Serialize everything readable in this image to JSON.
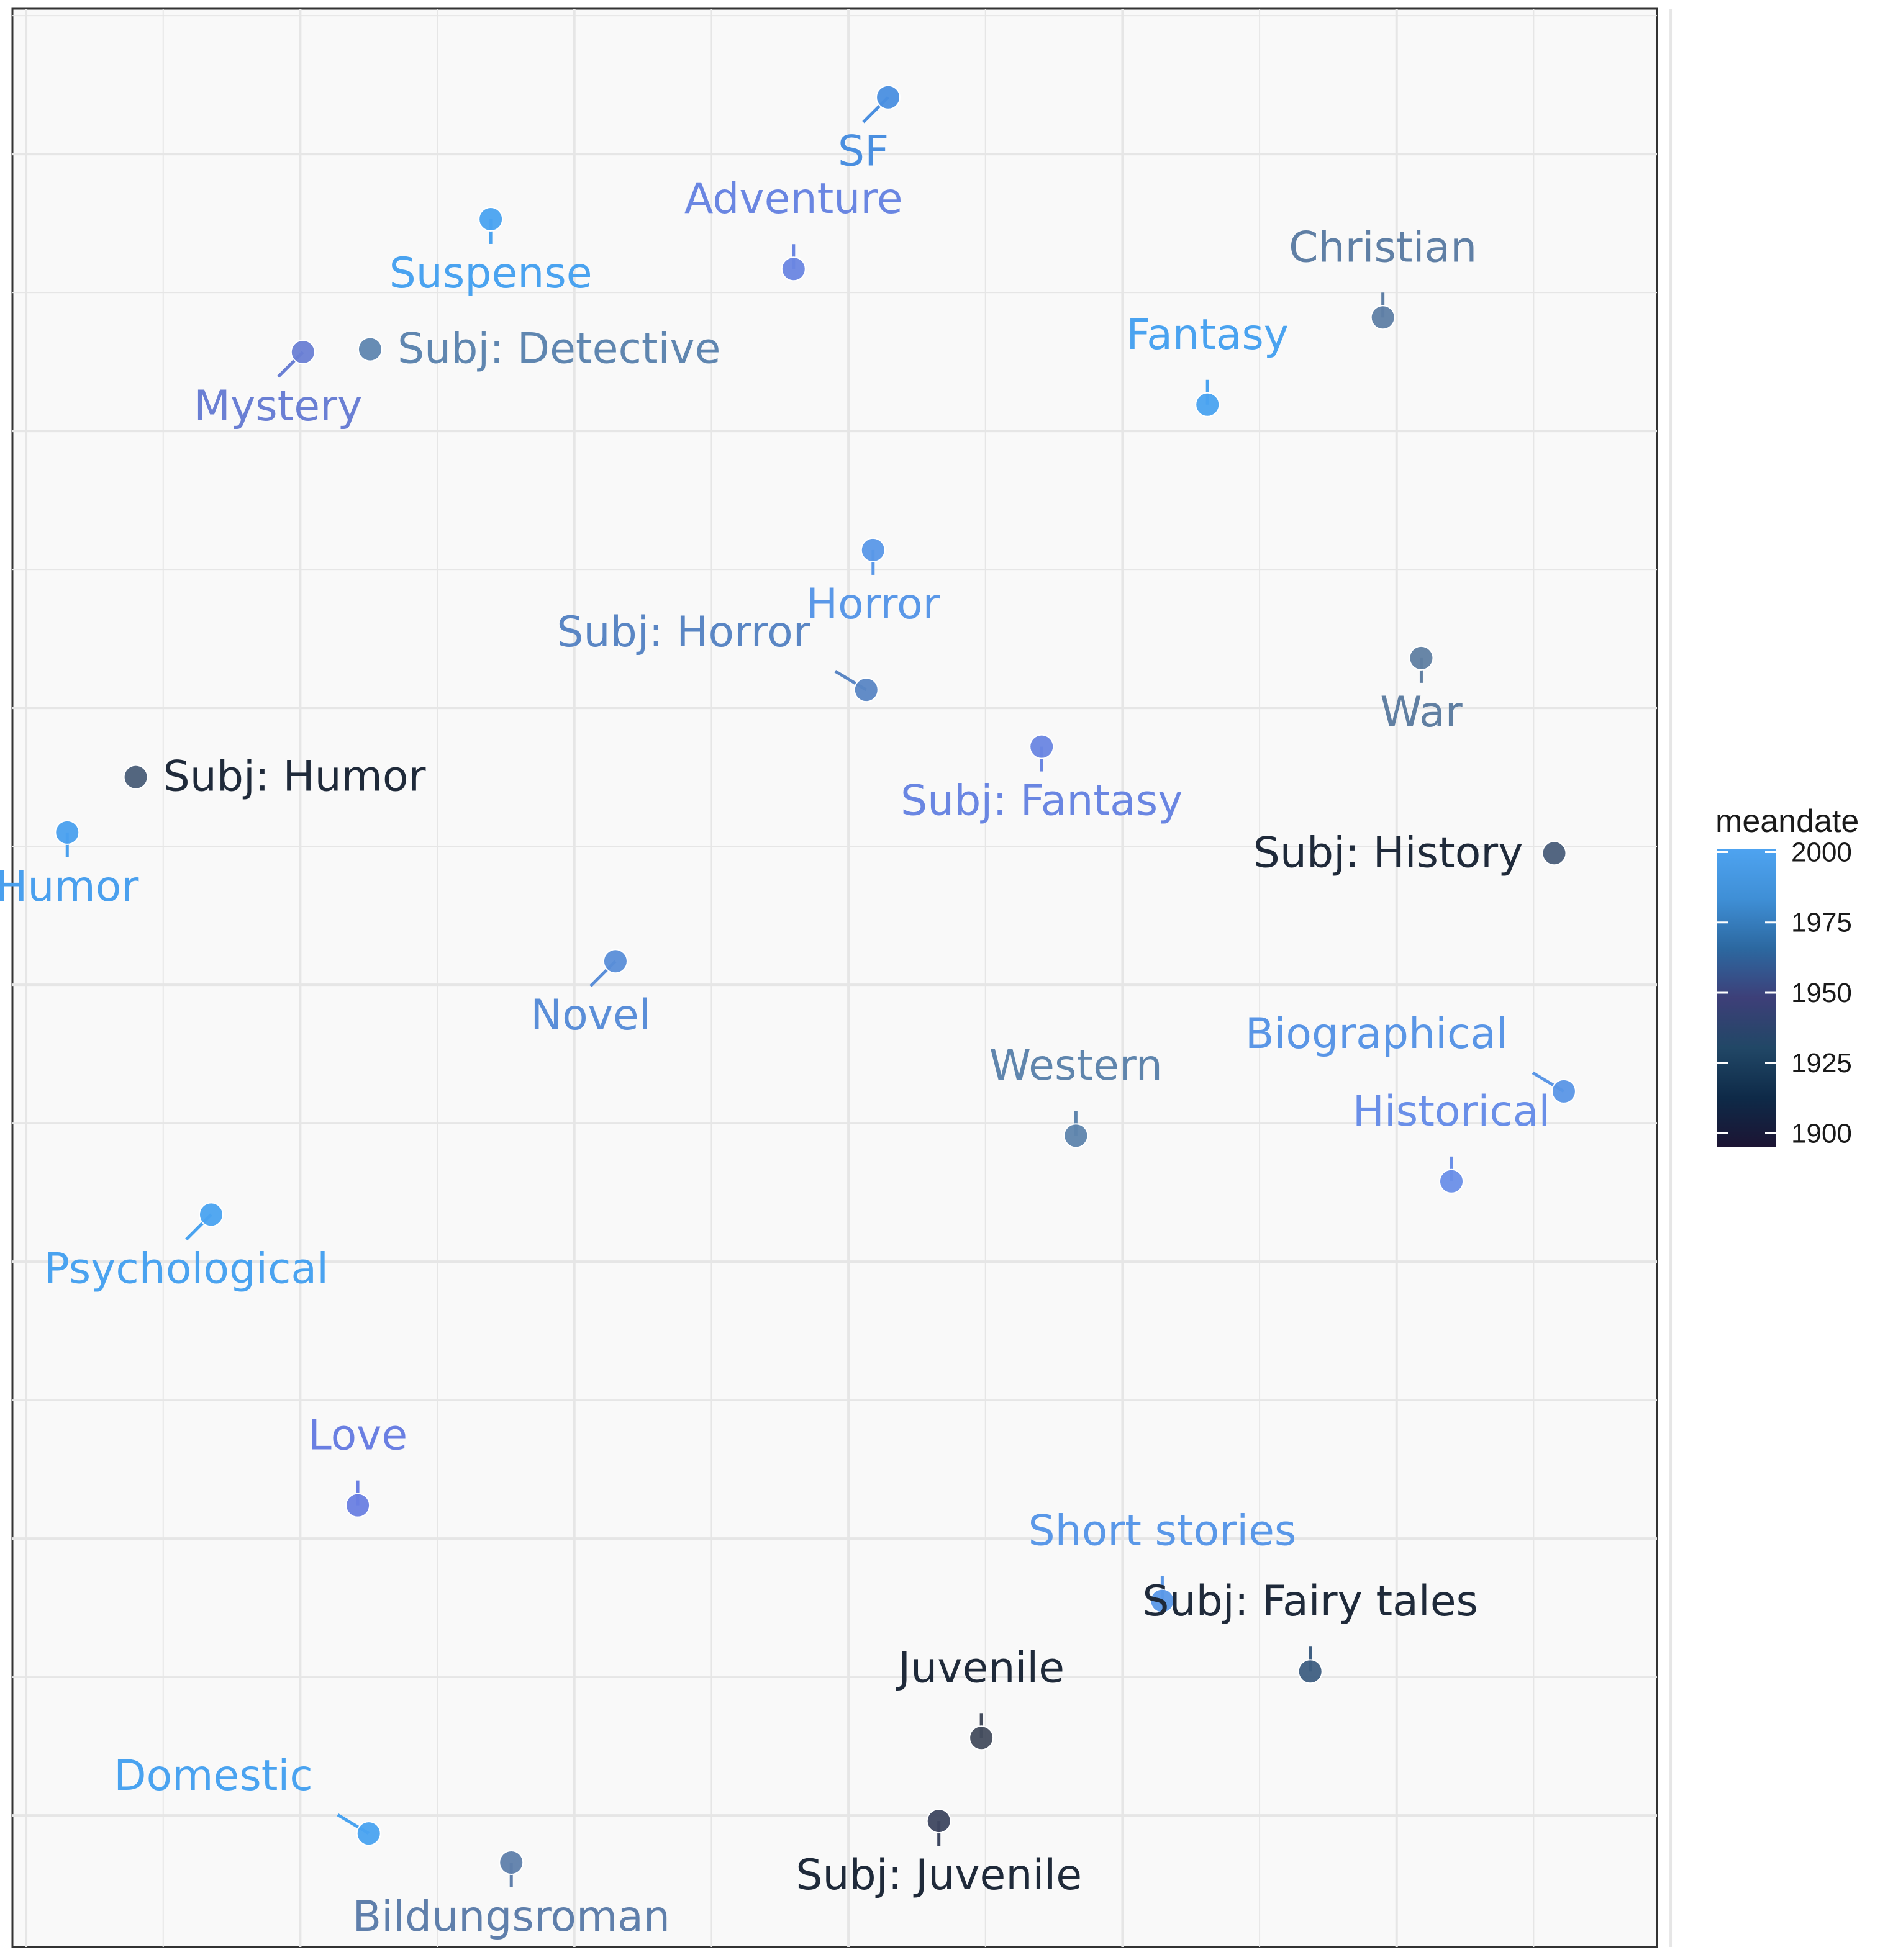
{
  "chart_data": {
    "type": "scatter",
    "title": "",
    "xlabel": "",
    "ylabel": "",
    "xlim": [
      0,
      12
    ],
    "ylim": [
      0,
      14
    ],
    "grid": true,
    "axis_ticks_shown": false,
    "legend": {
      "title": "meandate",
      "placement": "right",
      "ticks": [
        2000,
        1975,
        1950,
        1925,
        1900
      ],
      "range": [
        1895,
        2001
      ],
      "colors": [
        "#1c1433",
        "#0e2a48",
        "#214766",
        "#3d3f78",
        "#2c68a0",
        "#3f8fd6",
        "#4ea3f0"
      ]
    },
    "points": [
      {
        "label": "SF",
        "x": 6.39,
        "y": 13.36,
        "meandate": 1989,
        "color": "#4a8fe0",
        "label_pos": "bottom-left"
      },
      {
        "label": "Adventure",
        "x": 5.7,
        "y": 12.12,
        "meandate": 1965,
        "color": "#6a86e2",
        "label_pos": "top"
      },
      {
        "label": "Suspense",
        "x": 3.49,
        "y": 12.48,
        "meandate": 2000,
        "color": "#4aa3f0",
        "label_pos": "bottom"
      },
      {
        "label": "Mystery",
        "x": 2.12,
        "y": 11.52,
        "meandate": 1960,
        "color": "#6a7fd4",
        "label_pos": "bottom-left"
      },
      {
        "label": "Subj: Detective",
        "x": 2.61,
        "y": 11.54,
        "meandate": 1945,
        "color": "#5f86b0",
        "label_pos": "right"
      },
      {
        "label": "Christian",
        "x": 10.0,
        "y": 11.77,
        "meandate": 1948,
        "color": "#5f7fa5",
        "label_pos": "top"
      },
      {
        "label": "Fantasy",
        "x": 8.72,
        "y": 11.14,
        "meandate": 1998,
        "color": "#4aa3f0",
        "label_pos": "top"
      },
      {
        "label": "Horror",
        "x": 6.28,
        "y": 10.09,
        "meandate": 1985,
        "color": "#5a98e8",
        "label_pos": "bottom"
      },
      {
        "label": "Subj: Horror",
        "x": 6.23,
        "y": 9.08,
        "meandate": 1950,
        "color": "#5a86c4",
        "label_pos": "top-left"
      },
      {
        "label": "War",
        "x": 10.28,
        "y": 9.31,
        "meandate": 1942,
        "color": "#607fa2",
        "label_pos": "bottom"
      },
      {
        "label": "Subj: Fantasy",
        "x": 7.51,
        "y": 8.67,
        "meandate": 1965,
        "color": "#6a86e2",
        "label_pos": "bottom"
      },
      {
        "label": "Subj: Humor",
        "x": 0.9,
        "y": 8.45,
        "meandate": 1912,
        "color": "#4a5e78",
        "label_pos": "right"
      },
      {
        "label": "Humor",
        "x": 0.4,
        "y": 8.05,
        "meandate": 1996,
        "color": "#4aa0ee",
        "label_pos": "bottom"
      },
      {
        "label": "Subj: History",
        "x": 11.25,
        "y": 7.9,
        "meandate": 1910,
        "color": "#4a5e7a",
        "label_pos": "left"
      },
      {
        "label": "Novel",
        "x": 4.4,
        "y": 7.12,
        "meandate": 1975,
        "color": "#5a8ed8",
        "label_pos": "bottom-left"
      },
      {
        "label": "Western",
        "x": 7.76,
        "y": 5.86,
        "meandate": 1940,
        "color": "#5f85ad",
        "label_pos": "top"
      },
      {
        "label": "Biographical",
        "x": 11.32,
        "y": 6.18,
        "meandate": 1975,
        "color": "#5a96e6",
        "label_pos": "top-left"
      },
      {
        "label": "Historical",
        "x": 10.5,
        "y": 5.53,
        "meandate": 1970,
        "color": "#6a8fe8",
        "label_pos": "top"
      },
      {
        "label": "Psychological",
        "x": 1.45,
        "y": 5.29,
        "meandate": 1998,
        "color": "#4aa3f0",
        "label_pos": "bottom-left"
      },
      {
        "label": "Love",
        "x": 2.52,
        "y": 3.19,
        "meandate": 1962,
        "color": "#6a7fe2",
        "label_pos": "top"
      },
      {
        "label": "Short stories",
        "x": 8.39,
        "y": 2.5,
        "meandate": 1985,
        "color": "#5a98e8",
        "label_pos": "top"
      },
      {
        "label": "Subj: Fairy tales",
        "x": 9.47,
        "y": 1.99,
        "meandate": 1922,
        "color": "#3f5f82",
        "label_pos": "top"
      },
      {
        "label": "Juvenile",
        "x": 7.07,
        "y": 1.51,
        "meandate": 1905,
        "color": "#454d5e",
        "label_pos": "top"
      },
      {
        "label": "Subj: Juvenile",
        "x": 6.76,
        "y": 0.91,
        "meandate": 1900,
        "color": "#3e4760",
        "label_pos": "bottom"
      },
      {
        "label": "Domestic",
        "x": 2.6,
        "y": 0.82,
        "meandate": 2000,
        "color": "#4aa3f0",
        "label_pos": "top-left"
      },
      {
        "label": "Bildungsroman",
        "x": 3.64,
        "y": 0.61,
        "meandate": 1948,
        "color": "#5f7fab",
        "label_pos": "bottom"
      }
    ]
  }
}
